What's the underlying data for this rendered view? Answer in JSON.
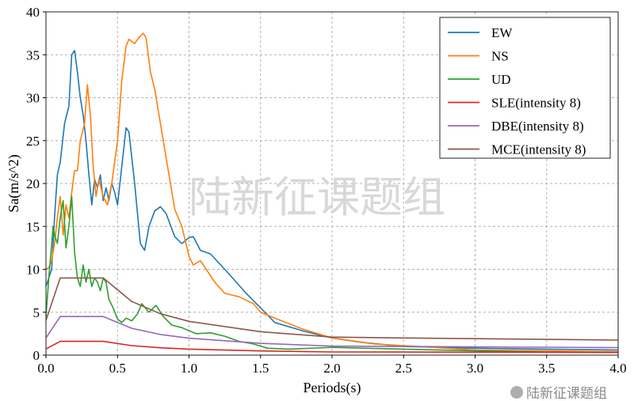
{
  "chart_data": {
    "type": "line",
    "xlabel": "Periods(s)",
    "ylabel": "Sa(m/s^2)",
    "xlim": [
      0,
      4.0
    ],
    "ylim": [
      0,
      40
    ],
    "xticks": [
      "0.0",
      "0.5",
      "1.0",
      "1.5",
      "2.0",
      "2.5",
      "3.0",
      "3.5",
      "4.0"
    ],
    "yticks": [
      "0",
      "5",
      "10",
      "15",
      "20",
      "25",
      "30",
      "35",
      "40"
    ],
    "grid": true,
    "legend_position": "top-right",
    "series": [
      {
        "name": "EW",
        "color": "#1f77b4",
        "x": [
          0,
          0.02,
          0.04,
          0.06,
          0.08,
          0.1,
          0.13,
          0.16,
          0.18,
          0.2,
          0.22,
          0.24,
          0.26,
          0.28,
          0.3,
          0.32,
          0.34,
          0.36,
          0.38,
          0.4,
          0.42,
          0.44,
          0.46,
          0.48,
          0.5,
          0.53,
          0.56,
          0.58,
          0.62,
          0.66,
          0.69,
          0.72,
          0.76,
          0.8,
          0.84,
          0.9,
          0.95,
          1.0,
          1.03,
          1.08,
          1.15,
          1.25,
          1.4,
          1.5,
          1.6,
          1.8,
          2.0,
          2.2,
          2.5,
          3.0,
          3.5,
          4.0
        ],
        "y": [
          8.0,
          9.0,
          10,
          16,
          21,
          22.5,
          27,
          29,
          35,
          35.5,
          33,
          30,
          28,
          25,
          21,
          17.5,
          20.5,
          19.5,
          21,
          18,
          19.5,
          18,
          20,
          19,
          17.5,
          22,
          26.5,
          26,
          20,
          13,
          12.2,
          15,
          16.8,
          17.3,
          16.5,
          13.8,
          13,
          13.7,
          13.8,
          12.2,
          11.8,
          10,
          7.2,
          5.5,
          3.8,
          2.8,
          2.0,
          1.5,
          1.0,
          0.8,
          0.7,
          0.6
        ]
      },
      {
        "name": "NS",
        "color": "#ff7f0e",
        "x": [
          0,
          0.02,
          0.04,
          0.06,
          0.08,
          0.1,
          0.12,
          0.14,
          0.16,
          0.18,
          0.2,
          0.22,
          0.24,
          0.27,
          0.29,
          0.31,
          0.33,
          0.35,
          0.37,
          0.4,
          0.43,
          0.46,
          0.5,
          0.53,
          0.56,
          0.58,
          0.62,
          0.65,
          0.68,
          0.7,
          0.73,
          0.76,
          0.8,
          0.85,
          0.9,
          0.95,
          1.0,
          1.03,
          1.08,
          1.12,
          1.18,
          1.25,
          1.35,
          1.45,
          1.5,
          1.6,
          1.8,
          2.0,
          2.3,
          2.6,
          3.0,
          3.5,
          4.0
        ],
        "y": [
          10,
          10.2,
          11,
          13,
          16,
          18.5,
          14,
          17.5,
          16,
          19,
          21.5,
          21.5,
          25,
          27,
          31.5,
          28,
          22,
          18.5,
          20.5,
          18.5,
          17.5,
          20,
          25,
          32,
          36,
          36.8,
          36.3,
          37,
          37.5,
          37,
          33,
          31,
          27,
          22,
          17,
          15,
          11.5,
          10.5,
          11,
          10,
          8.5,
          7.2,
          6.8,
          6,
          5,
          4.3,
          3,
          2.0,
          1.3,
          1.0,
          0.6,
          0.5,
          0.4
        ]
      },
      {
        "name": "UD",
        "color": "#2ca02c",
        "x": [
          0,
          0.02,
          0.04,
          0.05,
          0.06,
          0.08,
          0.1,
          0.12,
          0.14,
          0.16,
          0.18,
          0.2,
          0.22,
          0.24,
          0.26,
          0.28,
          0.3,
          0.32,
          0.34,
          0.36,
          0.38,
          0.4,
          0.42,
          0.44,
          0.47,
          0.5,
          0.53,
          0.56,
          0.6,
          0.64,
          0.67,
          0.72,
          0.77,
          0.82,
          0.88,
          0.95,
          1.05,
          1.15,
          1.25,
          1.35,
          1.45,
          1.55,
          1.7,
          2.0,
          2.5,
          3.0,
          3.5,
          4.0
        ],
        "y": [
          4.5,
          9,
          13,
          15,
          14,
          13,
          16,
          18,
          12.5,
          15,
          18.5,
          12,
          9,
          8,
          10.5,
          8.5,
          10,
          8,
          9,
          8.5,
          7.5,
          9,
          8.5,
          6.5,
          5.5,
          4.2,
          3.8,
          4.3,
          4.0,
          4.8,
          6.0,
          5.0,
          5.8,
          4.5,
          3.5,
          3.2,
          2.5,
          2.6,
          2.2,
          1.6,
          1.3,
          0.8,
          0.7,
          0.9,
          0.7,
          0.5,
          0.35,
          0.3
        ]
      },
      {
        "name": "SLE(intensity 8)",
        "color": "#d62728",
        "x": [
          0,
          0.1,
          0.4,
          0.6,
          0.8,
          1.0,
          1.5,
          2.0,
          2.5,
          3.0,
          3.5,
          4.0
        ],
        "y": [
          0.72,
          1.6,
          1.6,
          1.11,
          0.86,
          0.7,
          0.49,
          0.37,
          0.36,
          0.34,
          0.33,
          0.31
        ]
      },
      {
        "name": "DBE(intensity 8)",
        "color": "#9467bd",
        "x": [
          0,
          0.1,
          0.4,
          0.6,
          0.8,
          1.0,
          1.5,
          2.0,
          2.5,
          3.0,
          3.5,
          4.0
        ],
        "y": [
          2.0,
          4.5,
          4.5,
          3.12,
          2.41,
          1.97,
          1.37,
          1.05,
          1.0,
          0.96,
          0.92,
          0.88
        ]
      },
      {
        "name": "MCE(intensity 8)",
        "color": "#8c564b",
        "x": [
          0,
          0.1,
          0.4,
          0.6,
          0.8,
          1.0,
          1.5,
          2.0,
          2.5,
          3.0,
          3.5,
          4.0
        ],
        "y": [
          4.05,
          9,
          9,
          6.25,
          4.82,
          3.94,
          2.73,
          2.1,
          2.0,
          1.92,
          1.83,
          1.75
        ]
      }
    ]
  },
  "watermark": {
    "center_text": "陆新征课题组",
    "corner_text": "陆新征课题组"
  }
}
